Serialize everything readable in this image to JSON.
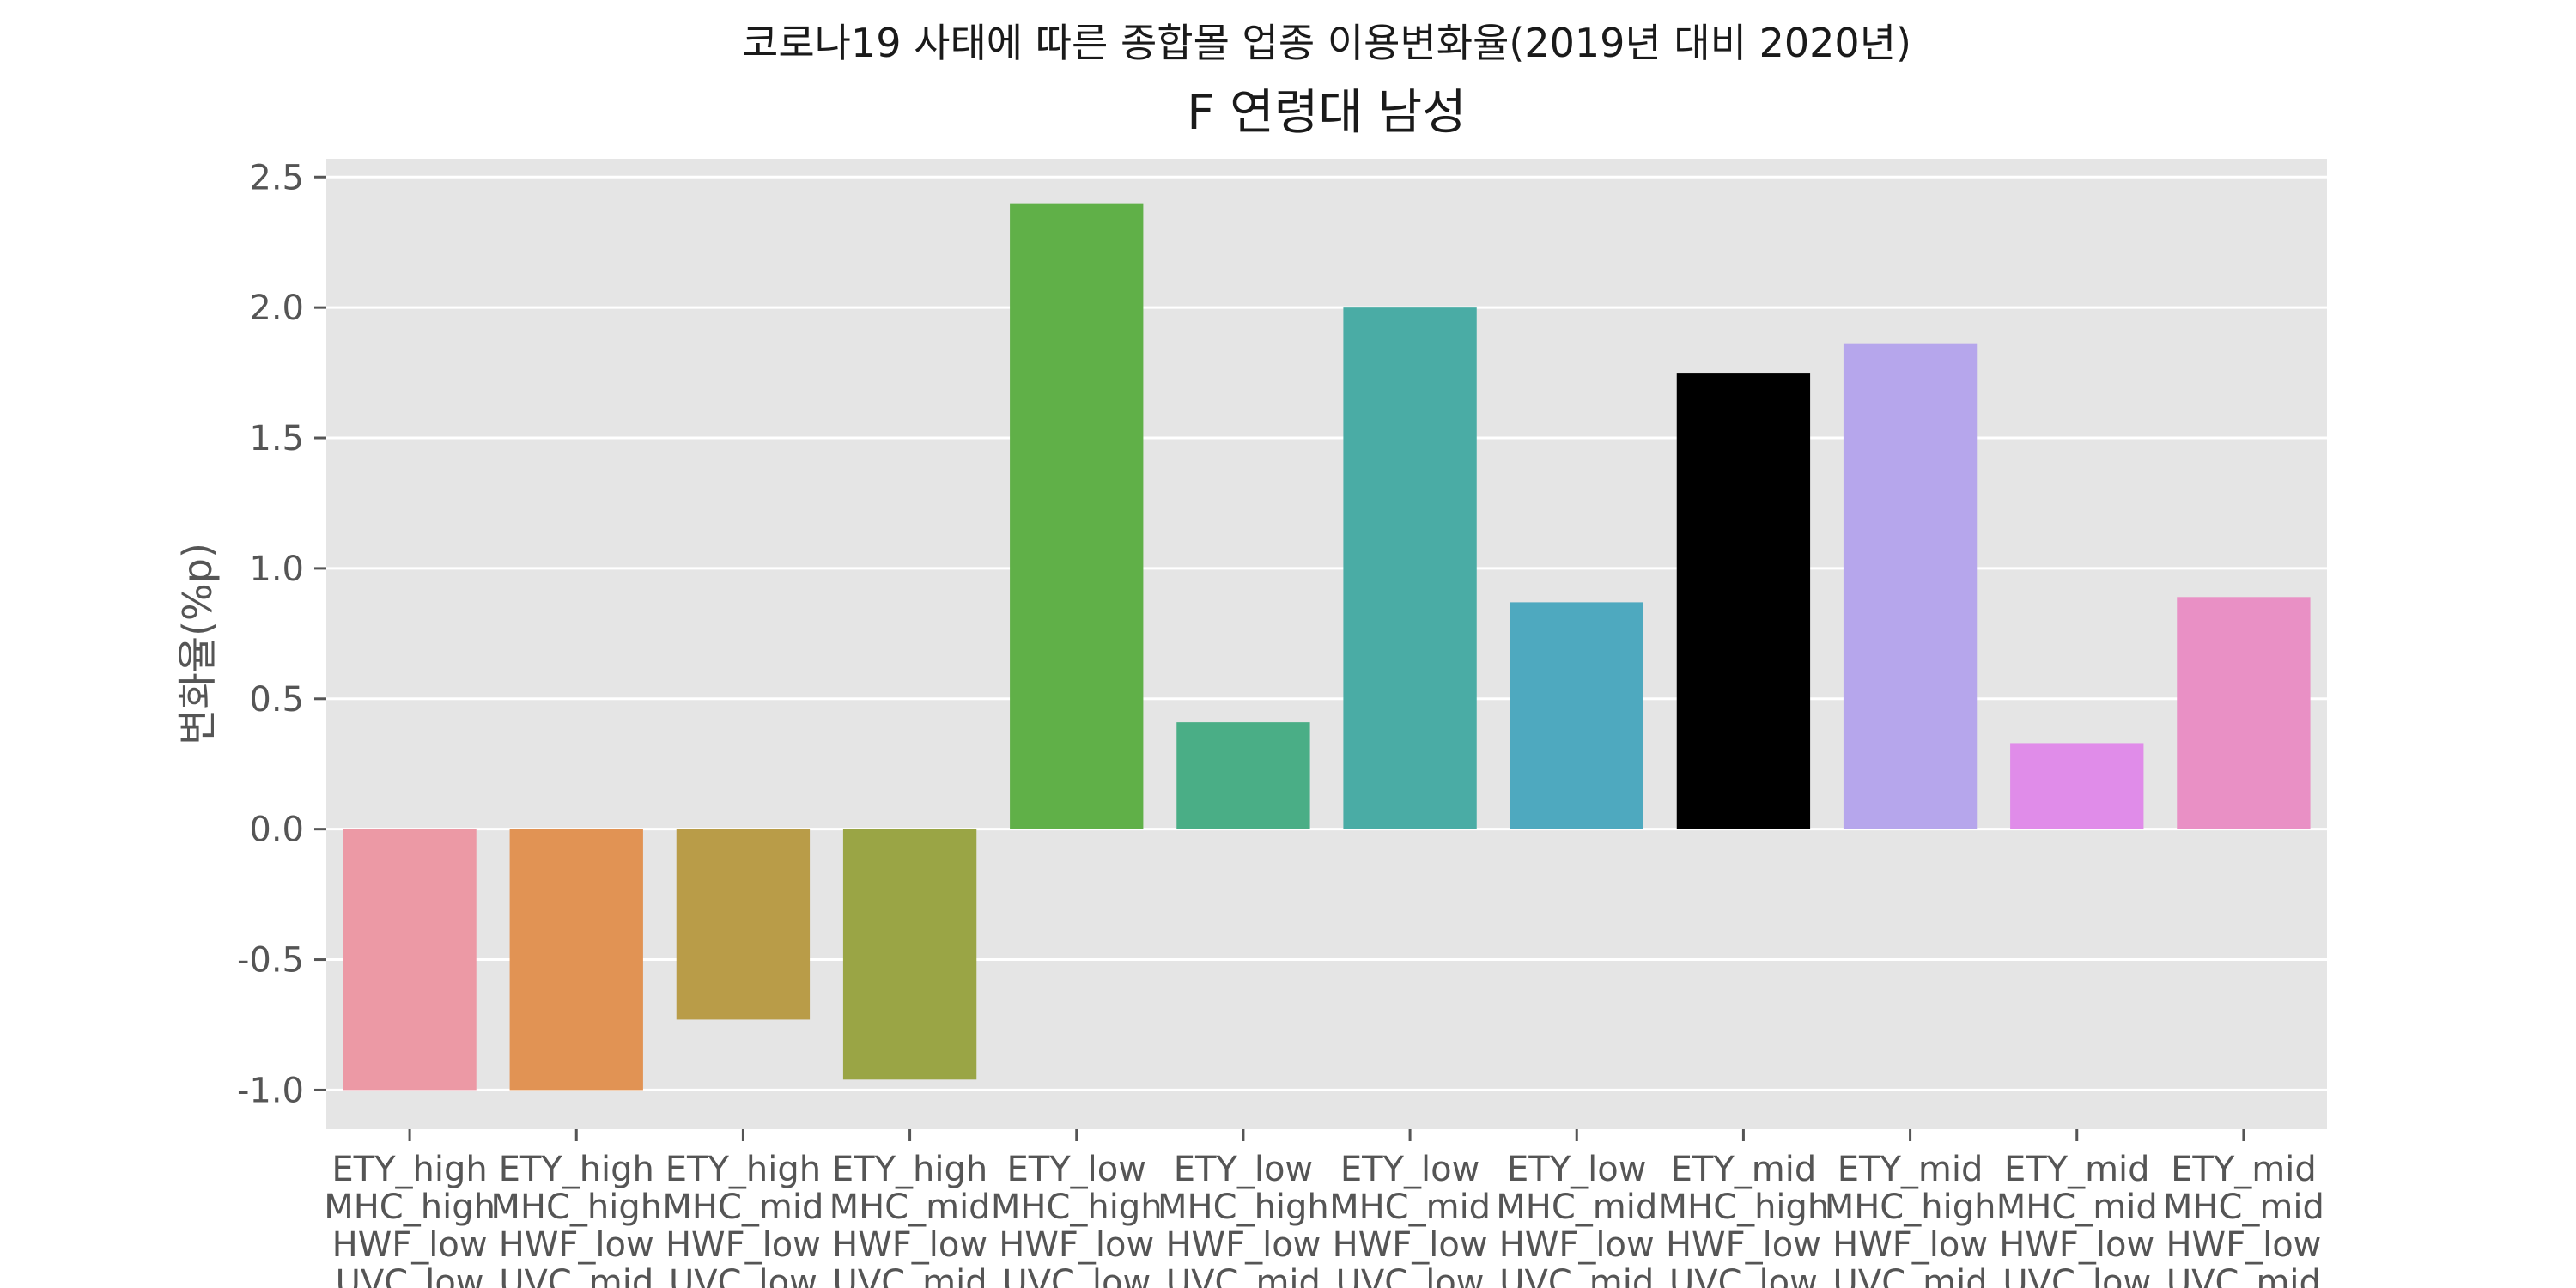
{
  "chart_data": {
    "type": "bar",
    "suptitle": "코로나19 사태에 따른 종합몰 업종 이용변화율(2019년 대비 2020년)",
    "title": "F 연령대 남성",
    "xlabel": "",
    "ylabel": "변화율(%p)",
    "ylim": [
      -1.15,
      2.57
    ],
    "yticks": [
      -1.0,
      -0.5,
      0.0,
      0.5,
      1.0,
      1.5,
      2.0,
      2.5
    ],
    "ytick_labels": [
      "-1.0",
      "-0.5",
      "0.0",
      "0.5",
      "1.0",
      "1.5",
      "2.0",
      "2.5"
    ],
    "grid": true,
    "categories": [
      [
        "ETY_high",
        "MHC_high",
        "HWF_low",
        "UVC_low"
      ],
      [
        "ETY_high",
        "MHC_high",
        "HWF_low",
        "UVC_mid"
      ],
      [
        "ETY_high",
        "MHC_mid",
        "HWF_low",
        "UVC_low"
      ],
      [
        "ETY_high",
        "MHC_mid",
        "HWF_low",
        "UVC_mid"
      ],
      [
        "ETY_low",
        "MHC_high",
        "HWF_low",
        "UVC_low"
      ],
      [
        "ETY_low",
        "MHC_high",
        "HWF_low",
        "UVC_mid"
      ],
      [
        "ETY_low",
        "MHC_mid",
        "HWF_low",
        "UVC_low"
      ],
      [
        "ETY_low",
        "MHC_mid",
        "HWF_low",
        "UVC_mid"
      ],
      [
        "ETY_mid",
        "MHC_high",
        "HWF_low",
        "UVC_low"
      ],
      [
        "ETY_mid",
        "MHC_high",
        "HWF_low",
        "UVC_mid"
      ],
      [
        "ETY_mid",
        "MHC_mid",
        "HWF_low",
        "UVC_low"
      ],
      [
        "ETY_mid",
        "MHC_mid",
        "HWF_low",
        "UVC_mid"
      ]
    ],
    "values": [
      -1.0,
      -1.0,
      -0.73,
      -0.96,
      2.4,
      0.41,
      2.0,
      0.87,
      1.75,
      1.86,
      0.33,
      0.89
    ],
    "colors": [
      "#ec99a5",
      "#e19354",
      "#b99c48",
      "#9aa545",
      "#60b048",
      "#4aae86",
      "#4aaca5",
      "#4ea9bf",
      "#6aadе2",
      "#b6a6ec",
      "#e08ce9",
      "#e990c5"
    ]
  }
}
